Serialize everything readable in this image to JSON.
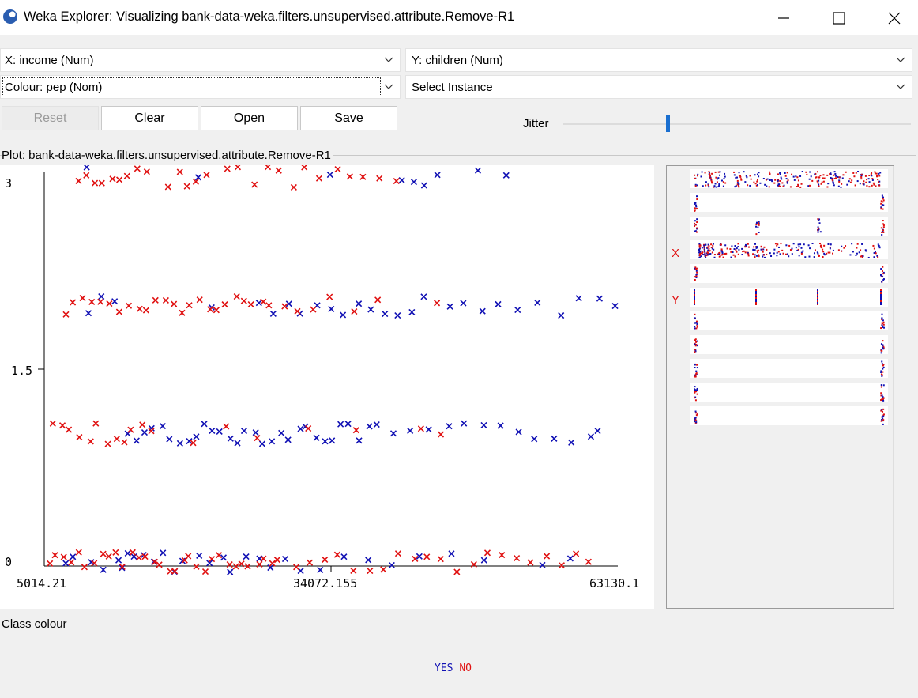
{
  "window": {
    "title": "Weka Explorer: Visualizing bank-data-weka.filters.unsupervised.attribute.Remove-R1"
  },
  "controls": {
    "x_axis": "X: income (Num)",
    "y_axis": "Y: children (Num)",
    "colour": "Colour: pep (Nom)",
    "instance": "Select Instance",
    "buttons": {
      "reset": "Reset",
      "clear": "Clear",
      "open": "Open",
      "save": "Save"
    },
    "jitter_label": "Jitter",
    "jitter_level": 0.3
  },
  "plot": {
    "label": "Plot: bank-data-weka.filters.unsupervised.attribute.Remove-R1",
    "x_ticks": [
      "5014.21",
      "34072.155",
      "63130.1"
    ],
    "y_ticks": [
      "3",
      "1.5",
      "0"
    ]
  },
  "matrix": {
    "x_marker": "X",
    "y_marker": "Y"
  },
  "legend": {
    "title": "Class colour",
    "items": [
      {
        "label": "YES",
        "color": "#1010b4"
      },
      {
        "label": "NO",
        "color": "#e01010"
      }
    ]
  },
  "chart_data": {
    "type": "scatter",
    "title": "",
    "xlabel": "income",
    "ylabel": "children",
    "xlim": [
      5014.21,
      63130.1
    ],
    "ylim": [
      0,
      3
    ],
    "marker": "x",
    "jittered": true,
    "series": [
      {
        "name": "YES",
        "color": "#1010b4",
        "points": [
          [
            7200,
            0
          ],
          [
            8100,
            0
          ],
          [
            9800,
            0
          ],
          [
            11200,
            0
          ],
          [
            12500,
            0
          ],
          [
            13000,
            0
          ],
          [
            13400,
            0
          ],
          [
            14100,
            0
          ],
          [
            15000,
            0
          ],
          [
            16100,
            0
          ],
          [
            17200,
            0
          ],
          [
            18000,
            0
          ],
          [
            19200,
            0
          ],
          [
            20500,
            0
          ],
          [
            21800,
            0
          ],
          [
            23100,
            0
          ],
          [
            24000,
            0
          ],
          [
            25500,
            0
          ],
          [
            26800,
            0
          ],
          [
            28100,
            0
          ],
          [
            29500,
            0
          ],
          [
            31200,
            0
          ],
          [
            33100,
            0
          ],
          [
            35400,
            0
          ],
          [
            37800,
            0
          ],
          [
            40100,
            0
          ],
          [
            43200,
            0
          ],
          [
            46300,
            0
          ],
          [
            49800,
            0
          ],
          [
            55400,
            0
          ],
          [
            58100,
            0
          ],
          [
            13500,
            1
          ],
          [
            14400,
            1
          ],
          [
            15200,
            1
          ],
          [
            16000,
            1
          ],
          [
            16900,
            1
          ],
          [
            17800,
            1
          ],
          [
            18600,
            1
          ],
          [
            19500,
            1
          ],
          [
            20300,
            1
          ],
          [
            21200,
            1
          ],
          [
            22100,
            1
          ],
          [
            22900,
            1
          ],
          [
            23800,
            1
          ],
          [
            24700,
            1
          ],
          [
            25500,
            1
          ],
          [
            26400,
            1
          ],
          [
            27300,
            1
          ],
          [
            28100,
            1
          ],
          [
            29000,
            1
          ],
          [
            29900,
            1
          ],
          [
            30800,
            1
          ],
          [
            31700,
            1
          ],
          [
            32500,
            1
          ],
          [
            33400,
            1
          ],
          [
            34300,
            1
          ],
          [
            35200,
            1
          ],
          [
            36000,
            1
          ],
          [
            36900,
            1
          ],
          [
            37800,
            1
          ],
          [
            38700,
            1
          ],
          [
            40500,
            1
          ],
          [
            42300,
            1
          ],
          [
            44100,
            1
          ],
          [
            45900,
            1
          ],
          [
            47700,
            1
          ],
          [
            49500,
            1
          ],
          [
            51300,
            1
          ],
          [
            53100,
            1
          ],
          [
            54900,
            1
          ],
          [
            56700,
            1
          ],
          [
            58500,
            1
          ],
          [
            60300,
            1
          ],
          [
            61200,
            1
          ],
          [
            9700,
            2
          ],
          [
            11000,
            2
          ],
          [
            12300,
            2
          ],
          [
            22200,
            2
          ],
          [
            26800,
            2
          ],
          [
            28200,
            2
          ],
          [
            29800,
            2
          ],
          [
            31100,
            2
          ],
          [
            32600,
            2
          ],
          [
            33900,
            2
          ],
          [
            35300,
            2
          ],
          [
            36700,
            2
          ],
          [
            38100,
            2
          ],
          [
            39400,
            2
          ],
          [
            40800,
            2
          ],
          [
            42200,
            2
          ],
          [
            43500,
            2
          ],
          [
            45900,
            2
          ],
          [
            47400,
            2
          ],
          [
            49300,
            2
          ],
          [
            51000,
            2
          ],
          [
            52800,
            2
          ],
          [
            55200,
            2
          ],
          [
            57400,
            2
          ],
          [
            59100,
            2
          ],
          [
            61200,
            2
          ],
          [
            63000,
            2
          ],
          [
            9400,
            3
          ],
          [
            20400,
            3
          ],
          [
            34200,
            3
          ],
          [
            41400,
            3
          ],
          [
            42600,
            3
          ],
          [
            43600,
            3
          ],
          [
            44800,
            3
          ],
          [
            48800,
            3
          ],
          [
            51900,
            3
          ]
        ]
      },
      {
        "name": "NO",
        "color": "#e01010",
        "points": [
          [
            5400,
            0
          ],
          [
            6300,
            0
          ],
          [
            7000,
            0
          ],
          [
            7800,
            0
          ],
          [
            8600,
            0
          ],
          [
            9300,
            0
          ],
          [
            10100,
            0
          ],
          [
            10800,
            0
          ],
          [
            11600,
            0
          ],
          [
            12300,
            0
          ],
          [
            13100,
            0
          ],
          [
            13800,
            0
          ],
          [
            14600,
            0
          ],
          [
            15300,
            0
          ],
          [
            16100,
            0
          ],
          [
            16800,
            0
          ],
          [
            17600,
            0
          ],
          [
            18300,
            0
          ],
          [
            19100,
            0
          ],
          [
            19800,
            0
          ],
          [
            20600,
            0
          ],
          [
            21300,
            0
          ],
          [
            22100,
            0
          ],
          [
            22800,
            0
          ],
          [
            23600,
            0
          ],
          [
            24300,
            0
          ],
          [
            25100,
            0
          ],
          [
            25800,
            0
          ],
          [
            26600,
            0
          ],
          [
            27300,
            0
          ],
          [
            28100,
            0
          ],
          [
            28800,
            0
          ],
          [
            30400,
            0
          ],
          [
            31900,
            0
          ],
          [
            33400,
            0
          ],
          [
            34900,
            0
          ],
          [
            36400,
            0
          ],
          [
            37900,
            0
          ],
          [
            39400,
            0
          ],
          [
            40900,
            0
          ],
          [
            42400,
            0
          ],
          [
            43900,
            0
          ],
          [
            45400,
            0
          ],
          [
            46900,
            0
          ],
          [
            48400,
            0
          ],
          [
            49900,
            0
          ],
          [
            51400,
            0
          ],
          [
            52900,
            0
          ],
          [
            54400,
            0
          ],
          [
            55900,
            0
          ],
          [
            57400,
            0
          ],
          [
            58900,
            0
          ],
          [
            60400,
            0
          ],
          [
            5900,
            1
          ],
          [
            6800,
            1
          ],
          [
            7700,
            1
          ],
          [
            8600,
            1
          ],
          [
            9500,
            1
          ],
          [
            10400,
            1
          ],
          [
            11300,
            1
          ],
          [
            12200,
            1
          ],
          [
            13100,
            1
          ],
          [
            14000,
            1
          ],
          [
            14900,
            1
          ],
          [
            15800,
            1
          ],
          [
            20200,
            1
          ],
          [
            23400,
            1
          ],
          [
            26500,
            1
          ],
          [
            32000,
            1
          ],
          [
            36800,
            1
          ],
          [
            43400,
            1
          ],
          [
            45200,
            1
          ],
          [
            7200,
            2
          ],
          [
            8100,
            2
          ],
          [
            9100,
            2
          ],
          [
            10000,
            2
          ],
          [
            10900,
            2
          ],
          [
            11800,
            2
          ],
          [
            12700,
            2
          ],
          [
            13600,
            2
          ],
          [
            14500,
            2
          ],
          [
            15400,
            2
          ],
          [
            16300,
            2
          ],
          [
            17200,
            2
          ],
          [
            18100,
            2
          ],
          [
            19000,
            2
          ],
          [
            19900,
            2
          ],
          [
            20800,
            2
          ],
          [
            21700,
            2
          ],
          [
            22600,
            2
          ],
          [
            23500,
            2
          ],
          [
            24400,
            2
          ],
          [
            25300,
            2
          ],
          [
            26200,
            2
          ],
          [
            27100,
            2
          ],
          [
            28000,
            2
          ],
          [
            29400,
            2
          ],
          [
            30900,
            2
          ],
          [
            32300,
            2
          ],
          [
            33800,
            2
          ],
          [
            36200,
            2
          ],
          [
            38600,
            2
          ],
          [
            44900,
            2
          ],
          [
            8300,
            3
          ],
          [
            9100,
            3
          ],
          [
            10200,
            3
          ],
          [
            11000,
            3
          ],
          [
            11900,
            3
          ],
          [
            12700,
            3
          ],
          [
            13600,
            3
          ],
          [
            14500,
            3
          ],
          [
            15400,
            3
          ],
          [
            17800,
            3
          ],
          [
            18700,
            3
          ],
          [
            19600,
            3
          ],
          [
            20500,
            3
          ],
          [
            21400,
            3
          ],
          [
            23400,
            3
          ],
          [
            24800,
            3
          ],
          [
            26200,
            3
          ],
          [
            27600,
            3
          ],
          [
            29000,
            3
          ],
          [
            30400,
            3
          ],
          [
            31600,
            3
          ],
          [
            33000,
            3
          ],
          [
            34700,
            3
          ],
          [
            36100,
            3
          ],
          [
            37500,
            3
          ],
          [
            39200,
            3
          ],
          [
            40600,
            3
          ]
        ]
      }
    ]
  }
}
